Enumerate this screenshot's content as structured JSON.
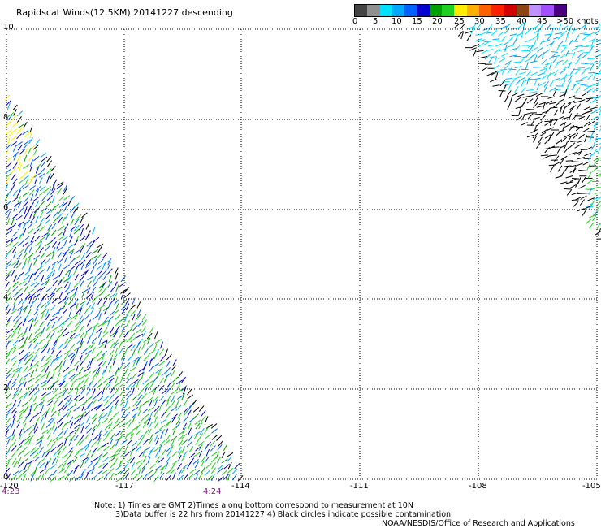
{
  "header": {
    "title": "Rapidscat Winds(12.5KM) 20141227 descending"
  },
  "legend": {
    "colors": [
      "#444444",
      "#909090",
      "#00e0ff",
      "#00a8ff",
      "#0060ff",
      "#0000d0",
      "#00a000",
      "#20d020",
      "#ffee00",
      "#ffb000",
      "#ff6000",
      "#ff2000",
      "#d00000",
      "#8b4513",
      "#c090ff",
      "#a050ff",
      "#4b0082"
    ],
    "labels": [
      "0",
      "5",
      "10",
      "15",
      "20",
      "25",
      "30",
      "35",
      "40",
      "45",
      ">50 knots"
    ]
  },
  "map": {
    "lat_labels": [
      "10",
      "8",
      "6",
      "4",
      "2",
      "0"
    ],
    "lon_labels": [
      "-120",
      "-117",
      "-114",
      "-111",
      "-108",
      "-105"
    ],
    "times": [
      "4:23",
      "4:24"
    ]
  },
  "notes": {
    "line1": "Note: 1) Times are GMT 2)Times along bottom correspond to measurement at 10N",
    "line2": "3)Data buffer is 22 hrs from 20141227 4) Black circles indicate possible contamination",
    "line3": "NOAA/NESDIS/Office of Research and Applications"
  }
}
